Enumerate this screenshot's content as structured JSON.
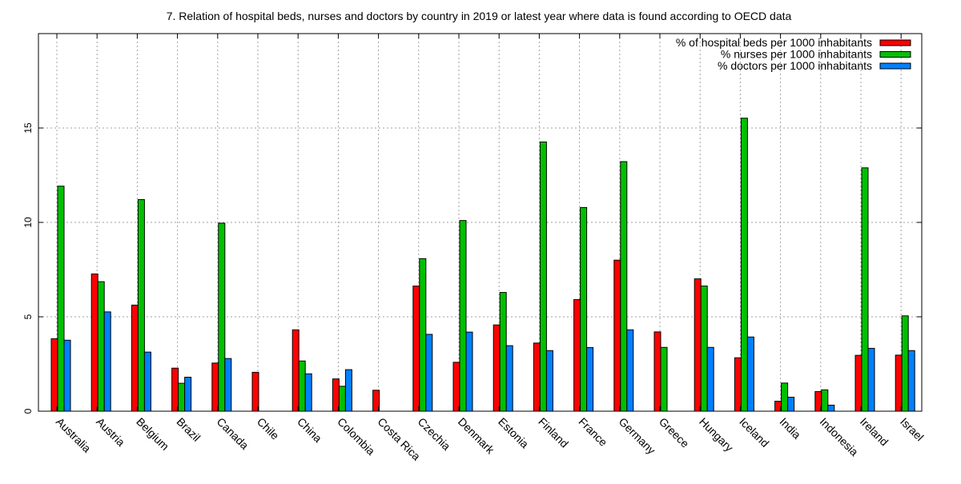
{
  "chart_data": {
    "type": "bar",
    "title": "7. Relation of hospital beds, nurses and doctors by country in 2019 or latest year where data is found according to OECD data",
    "xlabel": "",
    "ylabel": "",
    "ylim": [
      0,
      20
    ],
    "yticks": [
      0,
      5,
      10,
      15
    ],
    "grid": true,
    "legend_position": "top-right",
    "categories": [
      "Australia",
      "Austria",
      "Belgium",
      "Brazil",
      "Canada",
      "Chile",
      "China",
      "Colombia",
      "Costa Rica",
      "Czechia",
      "Denmark",
      "Estonia",
      "Finland",
      "France",
      "Germany",
      "Greece",
      "Hungary",
      "Iceland",
      "India",
      "Indonesia",
      "Ireland",
      "Israel"
    ],
    "series": [
      {
        "name": "% of hospital beds per 1000 inhabitants",
        "color": "#ff0000",
        "values": [
          3.84,
          7.27,
          5.62,
          2.28,
          2.55,
          2.06,
          4.31,
          1.71,
          1.11,
          6.63,
          2.59,
          4.57,
          3.61,
          5.91,
          8.0,
          4.2,
          7.01,
          2.83,
          0.53,
          1.04,
          2.96,
          2.97
        ]
      },
      {
        "name": "% nurses per 1000 inhabitants",
        "color": "#00c000",
        "values": [
          11.92,
          6.86,
          11.21,
          1.48,
          9.96,
          null,
          2.66,
          1.32,
          null,
          8.08,
          10.1,
          6.29,
          14.26,
          10.79,
          13.22,
          3.38,
          6.63,
          15.52,
          1.49,
          1.13,
          12.89,
          5.05
        ]
      },
      {
        "name": "% doctors per 1000 inhabitants",
        "color": "#0080ff",
        "values": [
          3.76,
          5.26,
          3.13,
          1.8,
          2.79,
          null,
          1.98,
          2.2,
          null,
          4.07,
          4.19,
          3.47,
          3.21,
          3.37,
          4.31,
          null,
          3.38,
          3.93,
          0.74,
          0.32,
          3.33,
          3.21
        ]
      }
    ]
  }
}
